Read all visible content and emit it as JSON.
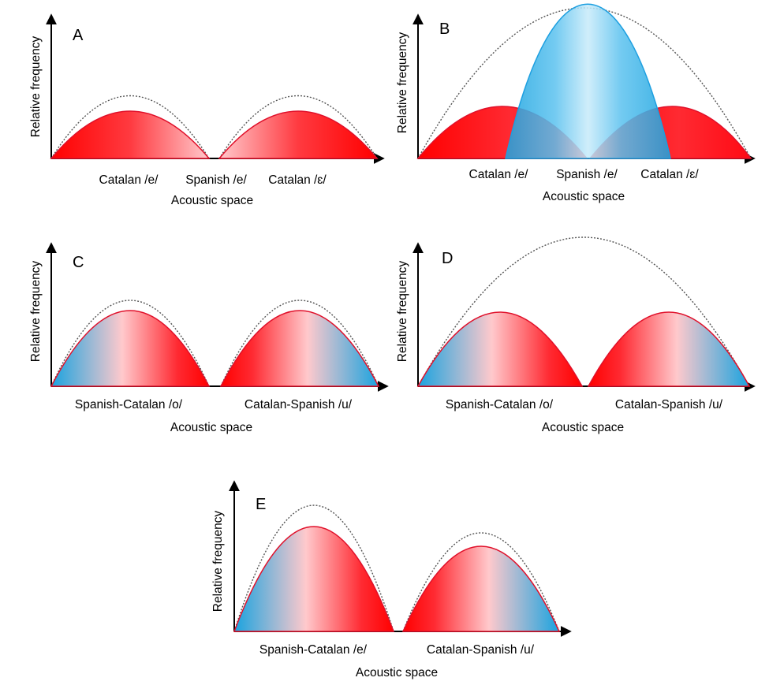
{
  "colors": {
    "red": "#ff0000",
    "pink": "#ffc9cc",
    "blue": "#1aa3df",
    "light_blue": "#c8ebfa",
    "curve_red": "#e0102a",
    "curve_blue": "#1d9fe0",
    "envelope": "#555555",
    "axis": "#000000"
  },
  "panels": [
    {
      "label": "A",
      "ylabel": "Relative frequency",
      "xlabel": "Acoustic space",
      "categories": [
        "Catalan /e/",
        "Spanish /e/",
        "Catalan /ɛ/"
      ],
      "curves": [
        {
          "fill": "red-to-pink",
          "height": 1.0
        },
        {
          "fill": "pink-to-red",
          "height": 1.0
        }
      ],
      "envelope_over_each": true
    },
    {
      "label": "B",
      "ylabel": "Relative frequency",
      "xlabel": "Acoustic space",
      "categories": [
        "Catalan /e/",
        "Spanish /e/",
        "Catalan /ɛ/"
      ],
      "curves": [
        {
          "fill": "red",
          "height": 0.35
        },
        {
          "fill": "blue",
          "height": 1.0
        },
        {
          "fill": "red",
          "height": 0.35
        }
      ],
      "envelope_over_each": false
    },
    {
      "label": "C",
      "ylabel": "Relative frequency",
      "xlabel": "Acoustic space",
      "categories": [
        "Spanish-Catalan /o/",
        "Catalan-Spanish /u/"
      ],
      "curves": [
        {
          "fill": "blue-pink-red",
          "height": 1.0
        },
        {
          "fill": "red-pink-blue",
          "height": 1.0
        }
      ],
      "envelope_over_each": true
    },
    {
      "label": "D",
      "ylabel": "Relative frequency",
      "xlabel": "Acoustic space",
      "categories": [
        "Spanish-Catalan /o/",
        "Catalan-Spanish /u/"
      ],
      "curves": [
        {
          "fill": "blue-pink-red",
          "height": 0.5
        },
        {
          "fill": "red-pink-blue",
          "height": 0.5
        }
      ],
      "envelope_over_each": false
    },
    {
      "label": "E",
      "ylabel": "Relative frequency",
      "xlabel": "Acoustic space",
      "categories": [
        "Spanish-Catalan /e/",
        "Catalan-Spanish /u/"
      ],
      "curves": [
        {
          "fill": "blue-pink-red",
          "height": 1.0
        },
        {
          "fill": "red-pink-blue",
          "height": 0.8
        }
      ],
      "envelope_over_each": true
    }
  ]
}
